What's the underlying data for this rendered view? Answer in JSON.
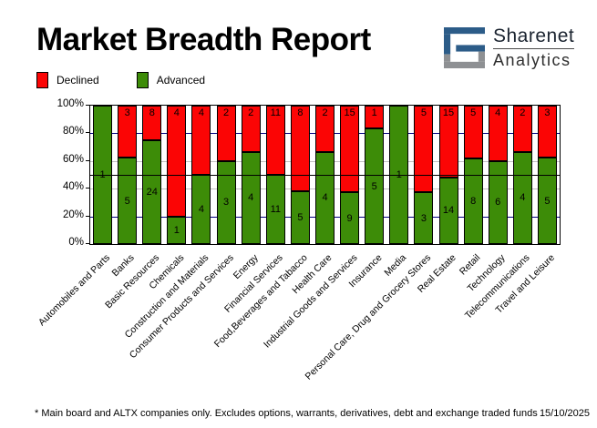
{
  "header": {
    "title": "Market Breadth Report",
    "logo": {
      "line1": "Sharenet",
      "line2": "Analytics",
      "blue": "#2c5c88",
      "gray": "#8e9093"
    }
  },
  "legend": {
    "items": [
      {
        "label": "Declined",
        "color": "#fb0505"
      },
      {
        "label": "Advanced",
        "color": "#3d8c08"
      }
    ]
  },
  "chart_data": {
    "type": "bar",
    "stacked": true,
    "title": "Market Breadth Report",
    "legend_position": "top-left",
    "bar_labels": "counts",
    "categories": [
      "Automobiles and Parts",
      "Banks",
      "Basic Resources",
      "Chemicals",
      "Construction and Materials",
      "Consumer Products and Services",
      "Energy",
      "Financial Services",
      "Food,Beverages and Tabacco",
      "Health Care",
      "Industrial Goods and Services",
      "Insurance",
      "Media",
      "Personal Care, Drug and Grocery Stores",
      "Real Estate",
      "Retail",
      "Technology",
      "Telecommunications",
      "Travel and Leisure"
    ],
    "series": [
      {
        "name": "Declined",
        "color": "#fb0505",
        "values": [
          0,
          3,
          8,
          4,
          4,
          2,
          2,
          11,
          8,
          2,
          15,
          1,
          0,
          5,
          15,
          5,
          4,
          2,
          3
        ]
      },
      {
        "name": "Advanced",
        "color": "#3d8c08",
        "values": [
          1,
          5,
          24,
          1,
          4,
          3,
          4,
          11,
          5,
          4,
          9,
          5,
          1,
          3,
          14,
          8,
          6,
          4,
          5
        ]
      }
    ],
    "value_axis": {
      "unit": "percent_of_total",
      "min": 0,
      "max": 100,
      "ticks": [
        "0%",
        "20%",
        "40%",
        "60%",
        "80%",
        "100%"
      ]
    },
    "gridlines": [
      {
        "pct": 20,
        "color": "#000080",
        "front": false
      },
      {
        "pct": 40,
        "color": "#c0c0c0",
        "front": false
      },
      {
        "pct": 50,
        "color": "#000000",
        "front": true
      },
      {
        "pct": 60,
        "color": "#c0c0c0",
        "front": false
      },
      {
        "pct": 80,
        "color": "#000080",
        "front": false
      }
    ]
  },
  "footer": {
    "note": "* Main board and ALTX companies only. Excludes options, warrants, derivatives, debt and exchange traded funds",
    "date": "15/10/2025"
  }
}
